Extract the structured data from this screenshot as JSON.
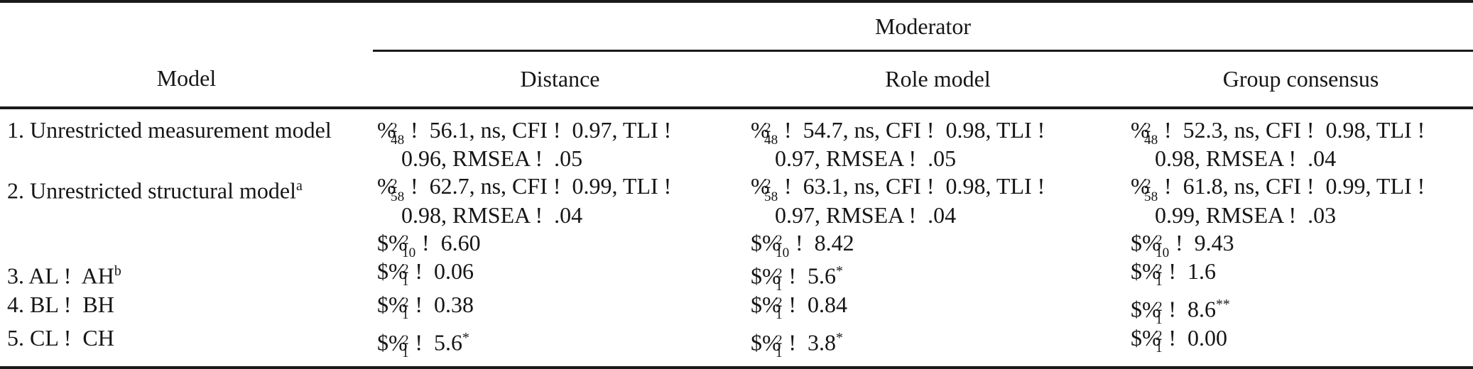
{
  "colors": {
    "background": "#ffffff",
    "text": "#161616",
    "rule": "#1a1a1a"
  },
  "table": {
    "spanner_label": "Moderator",
    "columns": [
      "Model",
      "Distance",
      "Role model",
      "Group consensus"
    ],
    "column_keys": [
      "model",
      "distance",
      "role-model",
      "group-consensus"
    ],
    "rows": [
      {
        "model": [
          {
            "seg": [
              "1. Unrestricted measurement model"
            ]
          }
        ],
        "cells": [
          [
            {
              "seg": [
                {
                  "chi": [
                    "2",
                    "48"
                  ]
                },
                " !  56.1, ns, CFI !  0.97, TLI !"
              ]
            },
            {
              "indent": true,
              "seg": [
                "0.96, RMSEA !  .05"
              ]
            }
          ],
          [
            {
              "seg": [
                {
                  "chi": [
                    "2",
                    "48"
                  ]
                },
                " !  54.7, ns, CFI !  0.98, TLI !"
              ]
            },
            {
              "indent": true,
              "seg": [
                "0.97, RMSEA !  .05"
              ]
            }
          ],
          [
            {
              "seg": [
                {
                  "chi": [
                    "2",
                    "48"
                  ]
                },
                " !  52.3, ns, CFI !  0.98, TLI !"
              ]
            },
            {
              "indent": true,
              "seg": [
                "0.98, RMSEA !  .04"
              ]
            }
          ]
        ]
      },
      {
        "model": [
          {
            "seg": [
              "2. Unrestricted structural model",
              {
                "sup": "a"
              }
            ]
          }
        ],
        "cells": [
          [
            {
              "seg": [
                {
                  "chi": [
                    "2",
                    "58"
                  ]
                },
                " !  62.7, ns, CFI !  0.99, TLI !"
              ]
            },
            {
              "indent": true,
              "seg": [
                "0.98, RMSEA !  .04"
              ]
            },
            {
              "seg": [
                "$",
                {
                  "chi": [
                    "2",
                    "10"
                  ]
                },
                " !  6.60"
              ]
            }
          ],
          [
            {
              "seg": [
                {
                  "chi": [
                    "2",
                    "58"
                  ]
                },
                " !  63.1, ns, CFI !  0.98, TLI !"
              ]
            },
            {
              "indent": true,
              "seg": [
                "0.97, RMSEA !  .04"
              ]
            },
            {
              "seg": [
                "$",
                {
                  "chi": [
                    "2",
                    "10"
                  ]
                },
                " !  8.42"
              ]
            }
          ],
          [
            {
              "seg": [
                {
                  "chi": [
                    "2",
                    "58"
                  ]
                },
                " !  61.8, ns, CFI !  0.99, TLI !"
              ]
            },
            {
              "indent": true,
              "seg": [
                "0.99, RMSEA !  .03"
              ]
            },
            {
              "seg": [
                "$",
                {
                  "chi": [
                    "2",
                    "10"
                  ]
                },
                " !  9.43"
              ]
            }
          ]
        ]
      },
      {
        "model": [
          {
            "seg": [
              "3. AL !  AH",
              {
                "sup": "b"
              }
            ]
          }
        ],
        "cells": [
          [
            {
              "seg": [
                "$",
                {
                  "chi": [
                    "2",
                    "1"
                  ]
                },
                " !  0.06"
              ]
            }
          ],
          [
            {
              "seg": [
                "$",
                {
                  "chi": [
                    "2",
                    "1"
                  ]
                },
                " !  5.6",
                {
                  "sup": "*"
                }
              ]
            }
          ],
          [
            {
              "seg": [
                "$",
                {
                  "chi": [
                    "2",
                    "1"
                  ]
                },
                " !  1.6"
              ]
            }
          ]
        ]
      },
      {
        "model": [
          {
            "seg": [
              "4. BL !  BH"
            ]
          }
        ],
        "cells": [
          [
            {
              "seg": [
                "$",
                {
                  "chi": [
                    "2",
                    "1"
                  ]
                },
                " !  0.38"
              ]
            }
          ],
          [
            {
              "seg": [
                "$",
                {
                  "chi": [
                    "2",
                    "1"
                  ]
                },
                " !  0.84"
              ]
            }
          ],
          [
            {
              "seg": [
                "$",
                {
                  "chi": [
                    "2",
                    "1"
                  ]
                },
                " !  8.6",
                {
                  "sup": "**"
                }
              ]
            }
          ]
        ]
      },
      {
        "model": [
          {
            "seg": [
              "5. CL !  CH"
            ]
          }
        ],
        "cells": [
          [
            {
              "seg": [
                "$",
                {
                  "chi": [
                    "2",
                    "1"
                  ]
                },
                " !  5.6",
                {
                  "sup": "*"
                }
              ]
            }
          ],
          [
            {
              "seg": [
                "$",
                {
                  "chi": [
                    "2",
                    "1"
                  ]
                },
                " !  3.8",
                {
                  "sup": "*"
                }
              ]
            }
          ],
          [
            {
              "seg": [
                "$",
                {
                  "chi": [
                    "2",
                    "1"
                  ]
                },
                " !  0.00"
              ]
            }
          ]
        ]
      }
    ]
  }
}
